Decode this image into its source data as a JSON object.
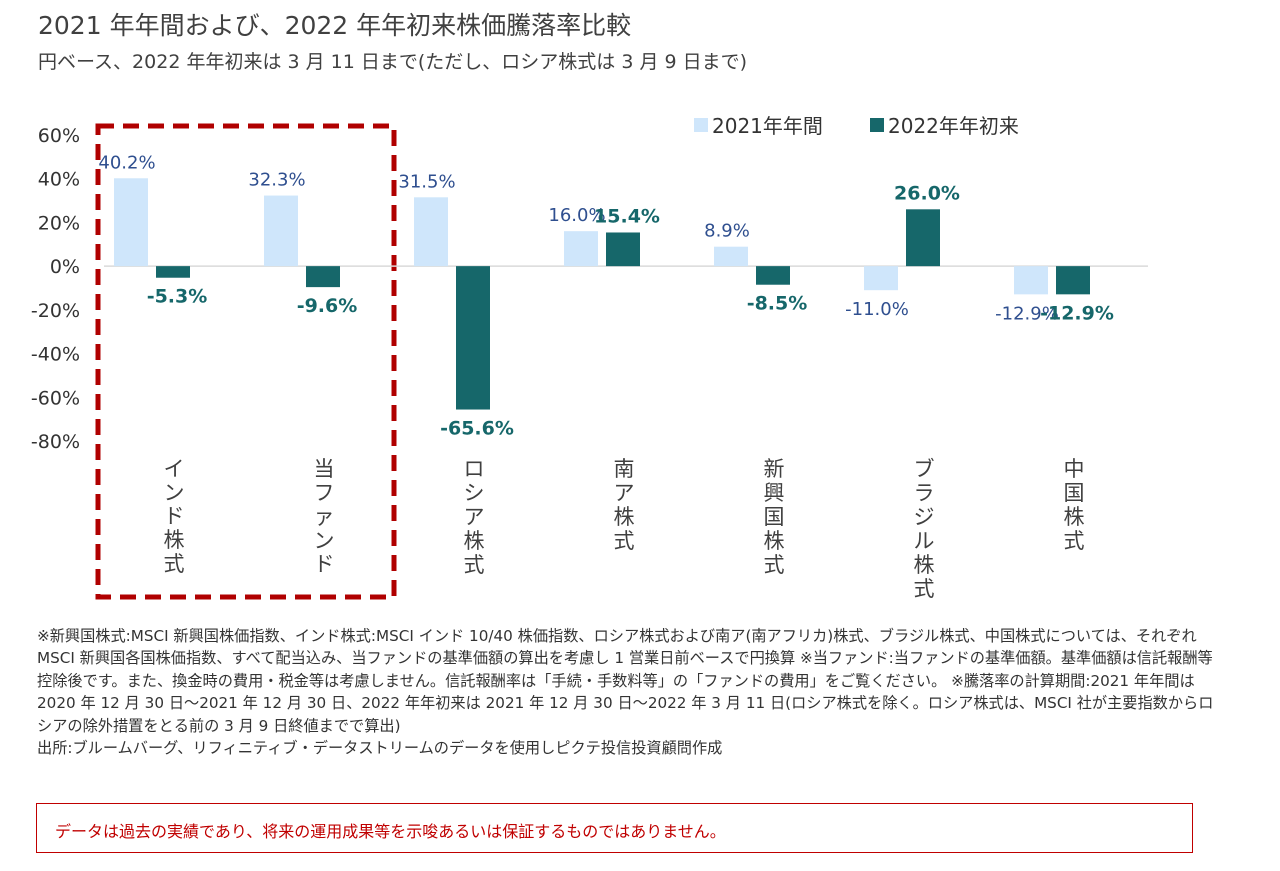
{
  "title": "2021 年年間および、2022 年年初来株価騰落率比較",
  "subtitle": "円ベース、2022 年年初来は 3 月 11 日まで(ただし、ロシア株式は 3 月 9 日まで)",
  "chart_data": {
    "type": "bar",
    "categories": [
      "インド株式",
      "当ファンド",
      "ロシア株式",
      "南ア株式",
      "新興国株式",
      "ブラジル株式",
      "中国株式"
    ],
    "series": [
      {
        "name": "2021年年間",
        "color": "#cfe6fb",
        "label_color": "#2f4f8f",
        "values": [
          40.2,
          32.3,
          31.5,
          16.0,
          8.9,
          -11.0,
          -12.9
        ],
        "labels": [
          "40.2%",
          "32.3%",
          "31.5%",
          "16.0%",
          "8.9%",
          "-11.0%",
          "-12.9%"
        ]
      },
      {
        "name": "2022年年初来",
        "color": "#16676a",
        "label_color": "#16676a",
        "values": [
          -5.3,
          -9.6,
          -65.6,
          15.4,
          -8.5,
          26.0,
          -12.9
        ],
        "labels": [
          "-5.3%",
          "-9.6%",
          "-65.6%",
          "15.4%",
          "-8.5%",
          "26.0%",
          "-12.9%"
        ]
      }
    ],
    "ylim": [
      -80,
      60
    ],
    "yticks": [
      "60%",
      "40%",
      "20%",
      "0%",
      "-20%",
      "-40%",
      "-60%",
      "-80%"
    ],
    "xlabel": "",
    "ylabel": "",
    "legend": "top-right",
    "grid": false,
    "highlight": {
      "categories": [
        "インド株式",
        "当ファンド"
      ],
      "style": "dashed",
      "color": "#b00000"
    }
  },
  "notes": [
    "※新興国株式:MSCI 新興国株価指数、インド株式:MSCI インド 10/40 株価指数、ロシア株式および南ア(南アフリカ)株式、ブラジル株式、中国株式については、それぞれ MSCI 新興国各国株価指数、すべて配当込み、当ファンドの基準価額の算出を考慮し 1 営業日前ベースで円換算 ※当ファンド:当ファンドの基準価額。基準価額は信託報酬等控除後です。また、換金時の費用・税金等は考慮しません。信託報酬率は「手続・手数料等」の「ファンドの費用」をご覧ください。 ※騰落率の計算期間:2021 年年間は 2020 年 12 月 30 日～2021 年 12 月 30 日、2022 年年初来は 2021 年 12 月 30 日～2022 年 3 月 11 日(ロシア株式を除く。ロシア株式は、MSCI 社が主要指数からロシアの除外措置をとる前の 3 月 9 日終値までで算出)",
    "出所:ブルームバーグ、リフィニティブ・データストリームのデータを使用しピクテ投信投資顧問作成"
  ],
  "disclaimer": "データは過去の実績であり、将来の運用成果等を示唆あるいは保証するものではありません。"
}
